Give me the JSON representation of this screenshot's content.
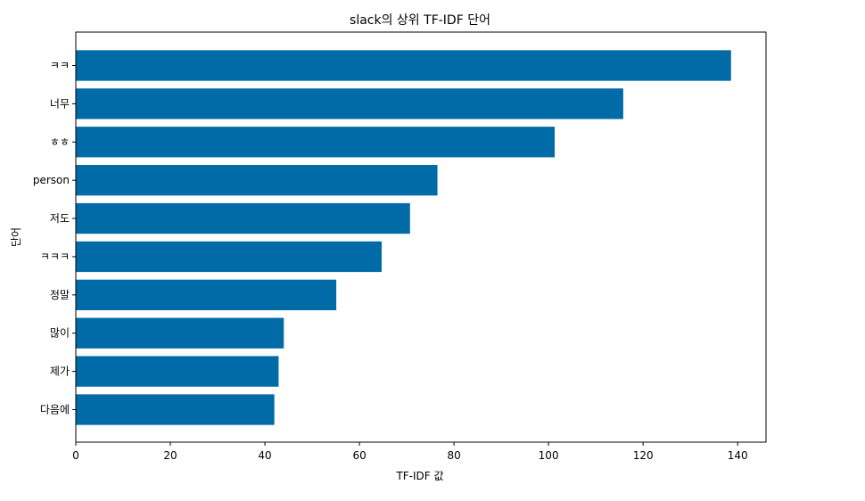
{
  "chart_data": {
    "type": "bar",
    "orientation": "horizontal",
    "title": "slack의 상위 TF-IDF 단어",
    "xlabel": "TF-IDF 값",
    "ylabel": "단어",
    "categories": [
      "ㅋㅋ",
      "너무",
      "ㅎㅎ",
      "person",
      "저도",
      "ㅋㅋㅋ",
      "정말",
      "많이",
      "제가",
      "다음에"
    ],
    "values": [
      138.6,
      115.8,
      101.3,
      76.5,
      70.7,
      64.7,
      55.1,
      44.0,
      42.9,
      42.0
    ],
    "xlim": [
      0,
      146
    ],
    "xticks": [
      0,
      20,
      40,
      60,
      80,
      100,
      120,
      140
    ],
    "bar_color": "#006ba6",
    "grid": false
  }
}
